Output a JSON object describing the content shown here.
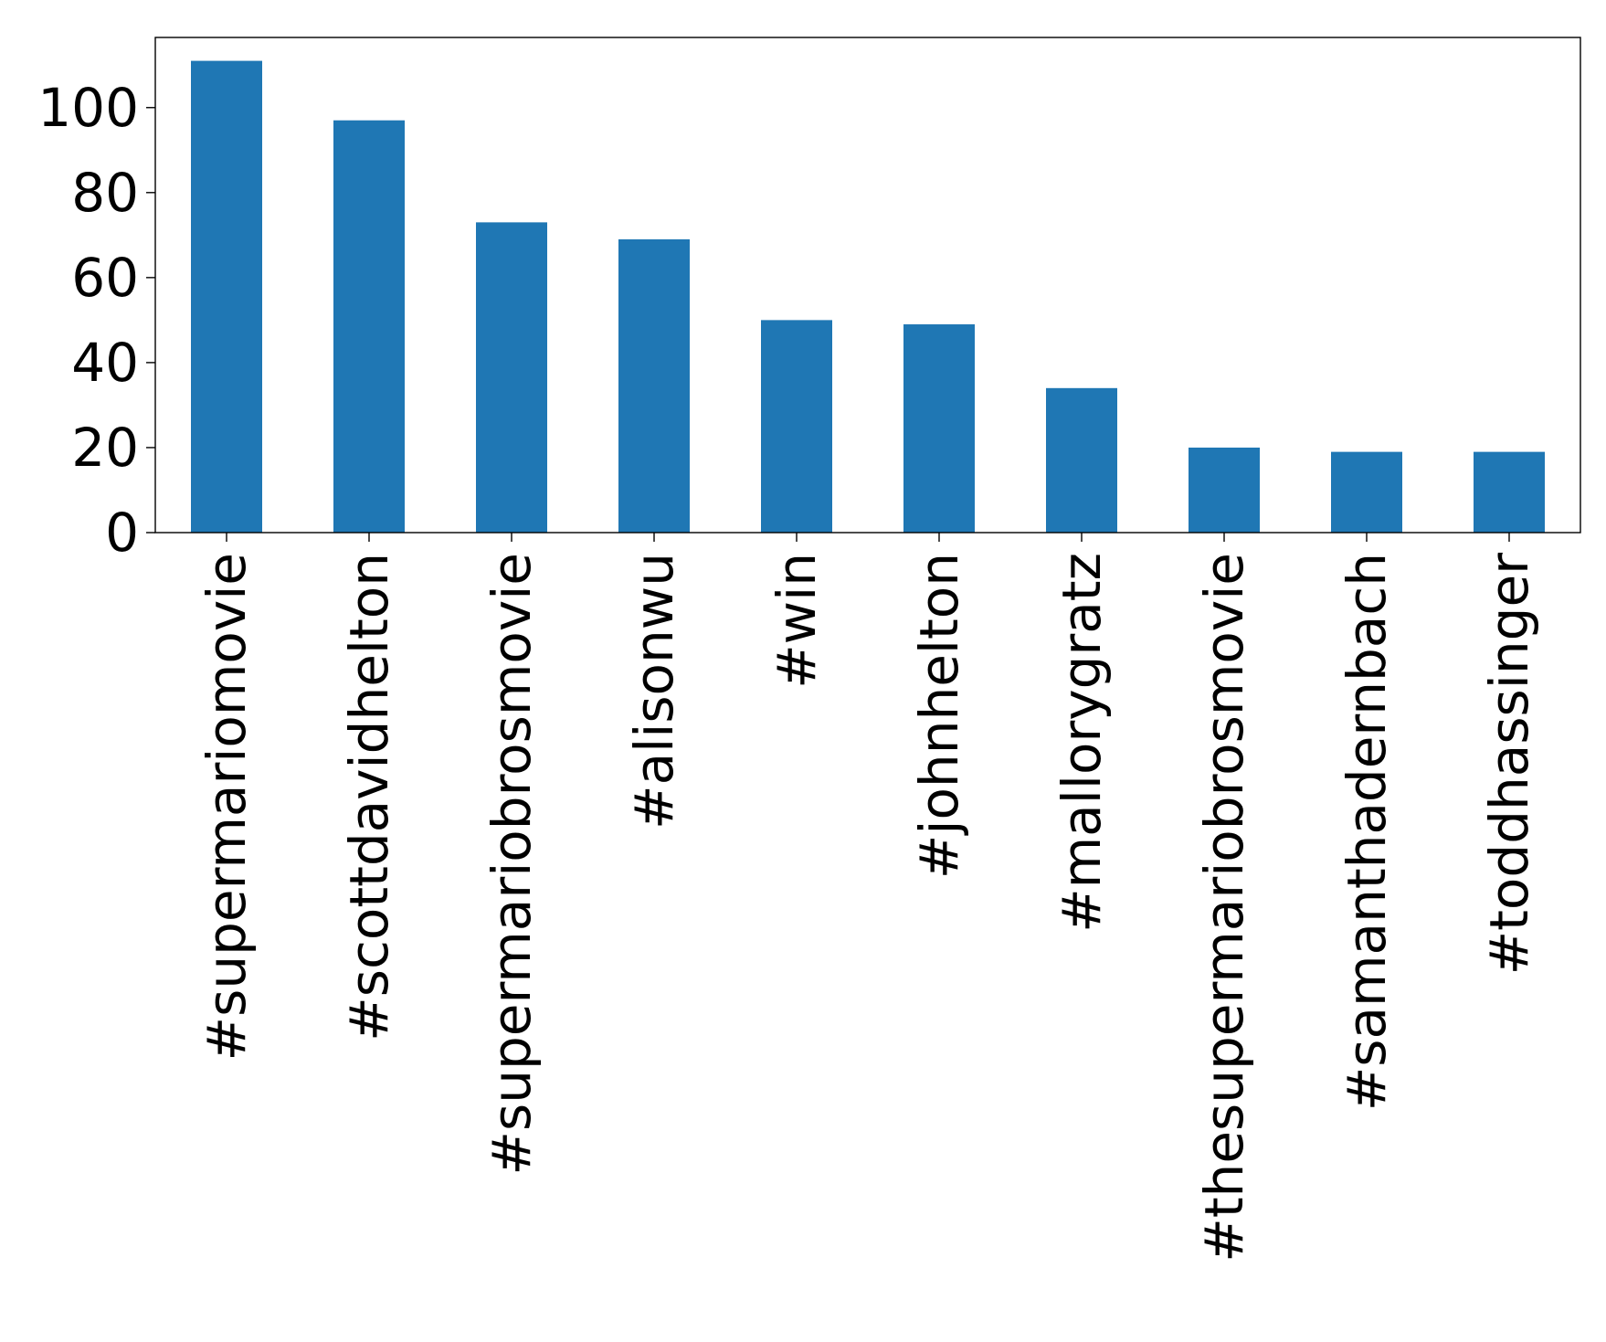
{
  "chart_data": {
    "type": "bar",
    "title": "",
    "xlabel": "",
    "ylabel": "",
    "categories": [
      "#supermariomovie",
      "#scottdavidhelton",
      "#supermariobrosmovie",
      "#alisonwu",
      "#win",
      "#johnhelton",
      "#mallorygratz",
      "#thesupermariobrosmovie",
      "#samanthadernbach",
      "#toddhassinger"
    ],
    "values": [
      111,
      97,
      73,
      69,
      50,
      49,
      34,
      20,
      19,
      19
    ],
    "ylim": [
      0,
      116.5
    ],
    "yticks": [
      0,
      20,
      40,
      60,
      80,
      100
    ],
    "grid": false,
    "legend": "none",
    "bar_color": "#1f77b4"
  }
}
